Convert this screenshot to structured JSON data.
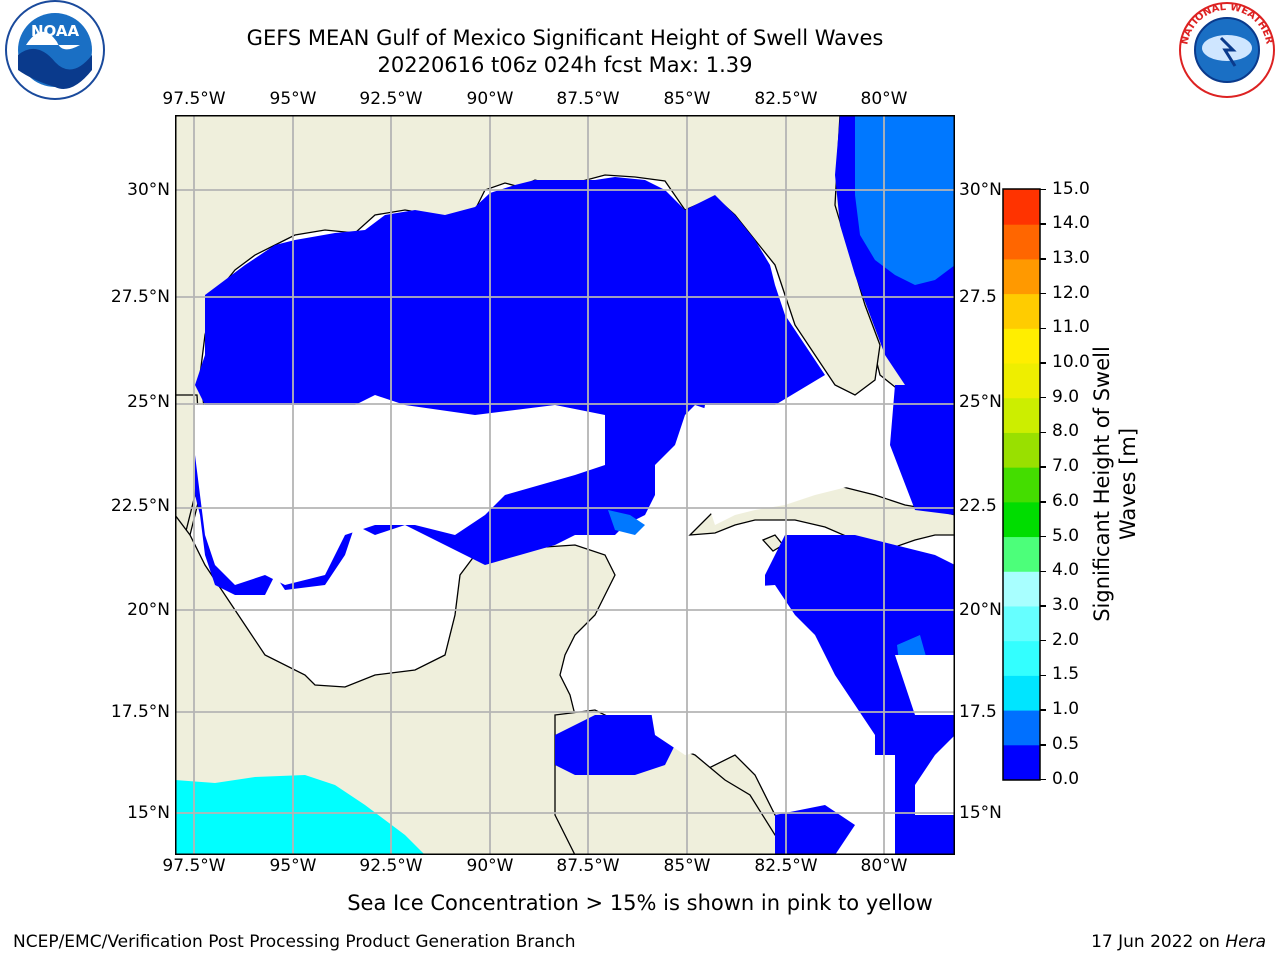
{
  "title_line1": "GEFS MEAN Gulf of Mexico Significant Height of Swell Waves",
  "title_line2": "20220616 t06z 024h fcst   Max: 1.39",
  "lon_labels": [
    "97.5°W",
    "95°W",
    "92.5°W",
    "90°W",
    "87.5°W",
    "85°W",
    "82.5°W",
    "80°W"
  ],
  "lat_labels": [
    "30°N",
    "27.5°N",
    "25°N",
    "22.5°N",
    "20°N",
    "17.5°N",
    "15°N"
  ],
  "right_lat_labels": [
    "30°N",
    "27.5",
    "25°N",
    "22.5",
    "20°N",
    "17.5",
    "15°N"
  ],
  "colorbar": {
    "label_line1": "Significant Height of Swell",
    "label_line2": "Waves [m]",
    "ticks": [
      "0.0",
      "0.5",
      "1.0",
      "1.5",
      "2.0",
      "3.0",
      "4.0",
      "5.0",
      "6.0",
      "7.0",
      "8.0",
      "9.0",
      "10.0",
      "11.0",
      "12.0",
      "13.0",
      "14.0",
      "15.0"
    ],
    "colors": [
      "#0000ff",
      "#0070ff",
      "#00e5ff",
      "#33ffff",
      "#66ffff",
      "#a8ffff",
      "#4cff7a",
      "#00dd00",
      "#44dd00",
      "#99e000",
      "#ccee00",
      "#eeee00",
      "#ffee00",
      "#ffcc00",
      "#ff9900",
      "#ff6600",
      "#ff3300",
      "#ff0000"
    ]
  },
  "colors": {
    "land": "#efefdc",
    "ocean_low": "#0000ff",
    "ocean_mid": "#0078ff",
    "cyan": "#00ffff",
    "grid": "#b4b4b4"
  },
  "logos": {
    "left": "NOAA",
    "right": "NATIONAL WEATHER SERVICE"
  },
  "note": "Sea Ice Concentration > 15% is shown in pink to yellow",
  "footer_left": "NCEP/EMC/Verification Post Processing Product Generation Branch",
  "footer_right_date": "17 Jun 2022 on ",
  "footer_right_host": "Hera"
}
